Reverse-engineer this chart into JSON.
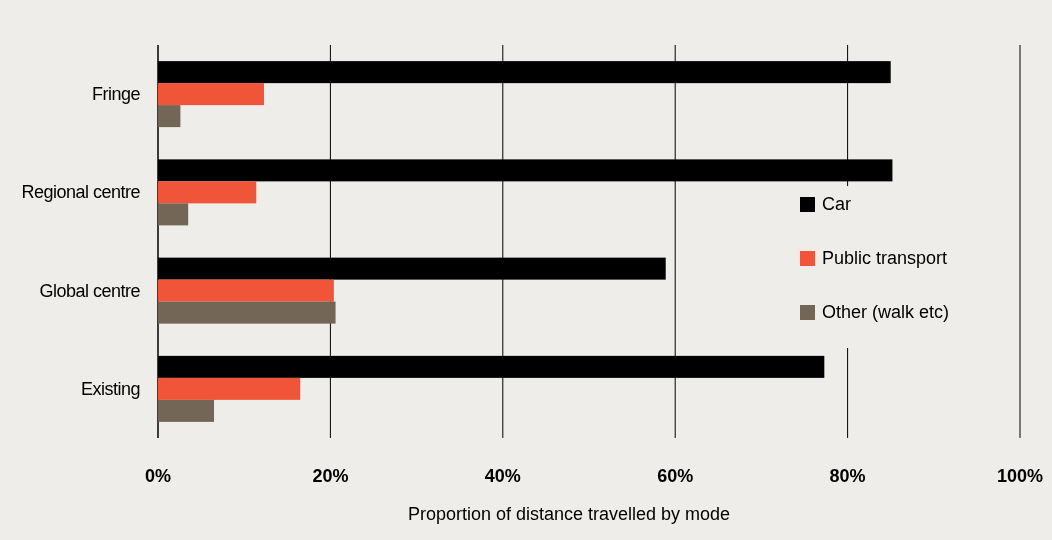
{
  "chart_data": {
    "type": "bar",
    "orientation": "horizontal",
    "xlabel": "Proportion of distance travelled by mode",
    "categories": [
      "Fringe",
      "Regional centre",
      "Global centre",
      "Existing"
    ],
    "series": [
      {
        "name": "Car",
        "color": "#000000",
        "values": [
          85,
          85.2,
          58.9,
          77.3
        ]
      },
      {
        "name": "Public transport",
        "color": "#f0553a",
        "values": [
          12.3,
          11.4,
          20.4,
          16.5
        ]
      },
      {
        "name": "Other (walk etc)",
        "color": "#746656",
        "values": [
          2.6,
          3.5,
          20.6,
          6.5
        ]
      }
    ],
    "xlim": [
      0,
      100
    ],
    "xticks": [
      {
        "value": 0,
        "label": "0%"
      },
      {
        "value": 20,
        "label": "20%"
      },
      {
        "value": 40,
        "label": "40%"
      },
      {
        "value": 60,
        "label": "60%"
      },
      {
        "value": 80,
        "label": "80%"
      },
      {
        "value": 100,
        "label": "100%"
      }
    ],
    "grid": "x",
    "legend": "right"
  }
}
